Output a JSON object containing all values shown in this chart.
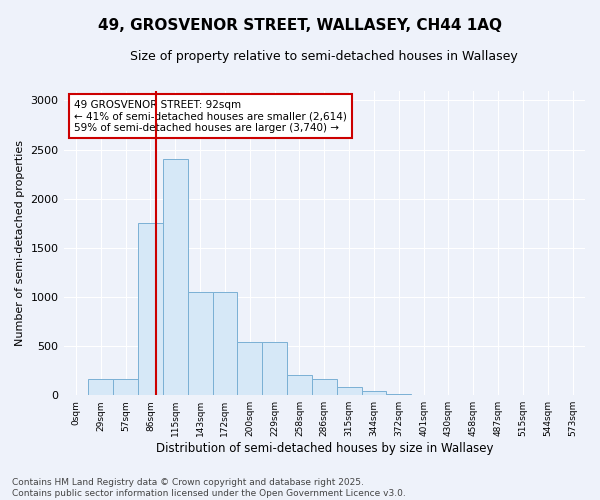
{
  "title_line1": "49, GROSVENOR STREET, WALLASEY, CH44 1AQ",
  "title_line2": "Size of property relative to semi-detached houses in Wallasey",
  "xlabel": "Distribution of semi-detached houses by size in Wallasey",
  "ylabel": "Number of semi-detached properties",
  "bin_labels": [
    "0sqm",
    "29sqm",
    "57sqm",
    "86sqm",
    "115sqm",
    "143sqm",
    "172sqm",
    "200sqm",
    "229sqm",
    "258sqm",
    "286sqm",
    "315sqm",
    "344sqm",
    "372sqm",
    "401sqm",
    "430sqm",
    "458sqm",
    "487sqm",
    "515sqm",
    "544sqm",
    "573sqm"
  ],
  "bar_heights": [
    0,
    170,
    170,
    1750,
    2400,
    1050,
    1050,
    540,
    540,
    210,
    160,
    80,
    40,
    15,
    5,
    2,
    1,
    0,
    0,
    0,
    0
  ],
  "bar_color": "#d6e8f7",
  "bar_edge_color": "#7ab0d4",
  "annotation_text": "49 GROSVENOR STREET: 92sqm\n← 41% of semi-detached houses are smaller (2,614)\n59% of semi-detached houses are larger (3,740) →",
  "annotation_box_color": "#ffffff",
  "annotation_box_edge_color": "#cc0000",
  "vline_color": "#cc0000",
  "ylim": [
    0,
    3100
  ],
  "yticks": [
    0,
    500,
    1000,
    1500,
    2000,
    2500,
    3000
  ],
  "background_color": "#eef2fa",
  "grid_color": "#ffffff",
  "footer_text": "Contains HM Land Registry data © Crown copyright and database right 2025.\nContains public sector information licensed under the Open Government Licence v3.0.",
  "title_fontsize": 11,
  "subtitle_fontsize": 9,
  "annotation_fontsize": 7.5,
  "footer_fontsize": 6.5,
  "ylabel_fontsize": 8,
  "xlabel_fontsize": 8.5
}
